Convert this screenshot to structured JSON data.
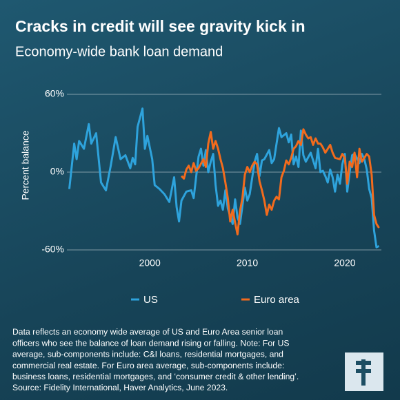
{
  "chart_data": {
    "type": "line",
    "title": "Cracks in credit will see gravity kick in",
    "subtitle": "Economy-wide bank loan demand",
    "y_label": "Percent balance",
    "xlim": [
      1991.5,
      2023.75
    ],
    "xticks": [
      2000,
      2010,
      2020
    ],
    "ylim": [
      -60,
      60
    ],
    "yticks": [
      {
        "value": -60,
        "label": "-60%"
      },
      {
        "value": 0,
        "label": "0%"
      },
      {
        "value": 60,
        "label": "60%"
      }
    ],
    "grid": true,
    "legend": "bottom",
    "series": [
      {
        "name": "US",
        "color": "#2ea3dc",
        "x": [
          1991.75,
          1992.25,
          1992.5,
          1992.75,
          1993.25,
          1993.75,
          1994.0,
          1994.5,
          1995.0,
          1995.5,
          1996.0,
          1996.5,
          1997.0,
          1997.5,
          1998.0,
          1998.25,
          1998.5,
          1998.75,
          1999.25,
          1999.5,
          1999.75,
          2000.25,
          2000.5,
          2001.0,
          2001.5,
          2002.0,
          2002.5,
          2002.75,
          2003.0,
          2003.25,
          2003.75,
          2004.25,
          2004.5,
          2005.0,
          2005.25,
          2005.5,
          2005.75,
          2006.0,
          2006.25,
          2006.5,
          2006.75,
          2007.0,
          2007.25,
          2007.5,
          2007.75,
          2008.0,
          2008.5,
          2008.75,
          2009.0,
          2009.25,
          2009.75,
          2010.0,
          2010.25,
          2010.75,
          2011.0,
          2011.25,
          2011.5,
          2011.75,
          2012.25,
          2012.5,
          2012.75,
          2013.25,
          2013.5,
          2014.0,
          2014.25,
          2014.5,
          2014.75,
          2015.0,
          2015.25,
          2015.5,
          2015.75,
          2016.0,
          2016.5,
          2017.0,
          2017.25,
          2017.5,
          2017.75,
          2018.0,
          2018.25,
          2018.5,
          2018.75,
          2019.0,
          2019.25,
          2019.5,
          2019.75,
          2020.0,
          2020.25,
          2020.5,
          2020.75,
          2021.0,
          2021.5,
          2021.75,
          2022.0,
          2022.25,
          2022.5,
          2022.75,
          2023.0,
          2023.25,
          2023.5
        ],
        "values": [
          -13,
          22,
          10,
          24,
          18,
          37,
          22,
          30,
          -8,
          -14,
          5,
          27,
          10,
          13,
          3,
          11,
          6,
          35,
          49,
          18,
          28,
          10,
          -10,
          -13,
          -17,
          -23,
          -4,
          -27,
          -38,
          -22,
          -15,
          -14,
          -20,
          12,
          18,
          5,
          17,
          0,
          8,
          14,
          -10,
          -26,
          -22,
          -29,
          -14,
          -28,
          -40,
          -21,
          -35,
          -40,
          -12,
          -22,
          -17,
          8,
          14,
          -3,
          9,
          10,
          17,
          7,
          10,
          34,
          27,
          30,
          23,
          29,
          6,
          12,
          4,
          32,
          13,
          8,
          15,
          3,
          18,
          0,
          1,
          -3,
          -8,
          2,
          -4,
          -15,
          -2,
          -9,
          6,
          14,
          -15,
          0,
          13,
          14,
          7,
          14,
          10,
          2,
          -13,
          -20,
          -45,
          -58,
          -57
        ]
      },
      {
        "name": "Euro area",
        "color": "#f26b1d",
        "x": [
          2003.25,
          2003.5,
          2003.75,
          2004.0,
          2004.25,
          2004.5,
          2004.75,
          2005.0,
          2005.5,
          2005.75,
          2006.0,
          2006.25,
          2006.5,
          2006.75,
          2007.0,
          2007.25,
          2007.5,
          2007.75,
          2008.0,
          2008.25,
          2008.5,
          2008.75,
          2009.0,
          2009.25,
          2009.5,
          2009.75,
          2010.0,
          2010.25,
          2010.5,
          2010.75,
          2011.0,
          2011.25,
          2011.5,
          2011.75,
          2012.0,
          2012.25,
          2012.5,
          2012.75,
          2013.0,
          2013.25,
          2013.5,
          2013.75,
          2014.0,
          2014.25,
          2014.5,
          2014.75,
          2015.0,
          2015.25,
          2015.5,
          2015.75,
          2016.0,
          2016.25,
          2016.5,
          2016.75,
          2017.0,
          2017.25,
          2017.5,
          2017.75,
          2018.0,
          2018.5,
          2018.75,
          2019.0,
          2019.5,
          2019.75,
          2020.0,
          2020.25,
          2020.5,
          2020.75,
          2021.0,
          2021.25,
          2021.5,
          2021.75,
          2022.0,
          2022.25,
          2022.5,
          2022.75,
          2023.0,
          2023.25,
          2023.5
        ],
        "values": [
          -3,
          -5,
          2,
          5,
          0,
          7,
          1,
          3,
          10,
          4,
          22,
          31,
          18,
          24,
          18,
          10,
          3,
          -8,
          -20,
          -38,
          -29,
          -39,
          -48,
          -30,
          -20,
          -2,
          4,
          0,
          5,
          8,
          6,
          -7,
          -14,
          -22,
          -33,
          -25,
          -29,
          -22,
          -19,
          -21,
          -4,
          1,
          9,
          6,
          11,
          18,
          20,
          24,
          21,
          33,
          29,
          26,
          27,
          21,
          26,
          22,
          22,
          19,
          15,
          21,
          15,
          11,
          10,
          14,
          11,
          -9,
          8,
          4,
          15,
          -4,
          18,
          8,
          11,
          14,
          12,
          -2,
          -33,
          -40,
          -43
        ]
      }
    ],
    "footnote": [
      "Data reflects an economy wide average of US and Euro Area senior loan",
      "officers who see the balance of loan demand rising or falling. Note: For US",
      "average, sub-components include: C&I loans, residential mortgages, and",
      "commercial real estate. For Euro area average, sub-components include:",
      "business loans, residential mortgages, and ‘consumer credit & other lending’.",
      "Source: Fidelity International, Haver Analytics, June 2023."
    ]
  }
}
